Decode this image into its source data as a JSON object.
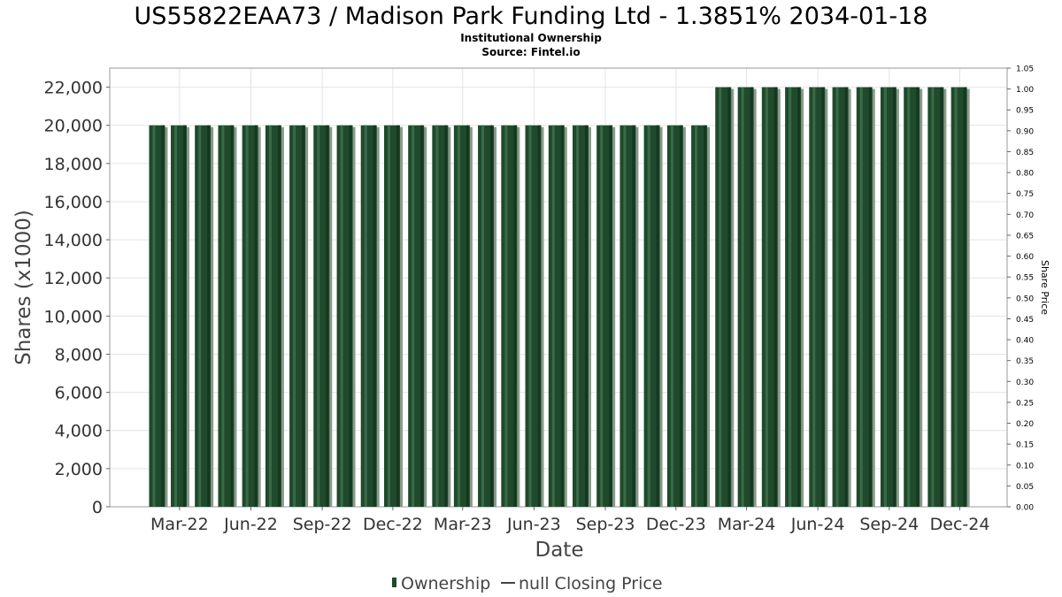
{
  "chart_data": {
    "type": "bar",
    "title": "US55822EAA73 / Madison Park Funding Ltd - 1.3851% 2034-01-18",
    "subtitle_lines": [
      "Institutional Ownership",
      "Source: Fintel.io"
    ],
    "xlabel": "Date",
    "ylabel": "Shares (x1000)",
    "ylabel_right": "Share Price",
    "ylim": [
      0,
      23000
    ],
    "ylim_right": [
      0,
      1.05
    ],
    "y_ticks": [
      0,
      2000,
      4000,
      6000,
      8000,
      10000,
      12000,
      14000,
      16000,
      18000,
      20000,
      22000
    ],
    "y_tick_labels": [
      "0",
      "2,000",
      "4,000",
      "6,000",
      "8,000",
      "10,000",
      "12,000",
      "14,000",
      "16,000",
      "18,000",
      "20,000",
      "22,000"
    ],
    "y_right_tick_labels": [
      "0.00",
      "0.05",
      "0.10",
      "0.15",
      "0.20",
      "0.25",
      "0.30",
      "0.35",
      "0.40",
      "0.45",
      "0.50",
      "0.55",
      "0.60",
      "0.65",
      "0.70",
      "0.75",
      "0.80",
      "0.85",
      "0.90",
      "0.95",
      "1.00",
      "1.05"
    ],
    "x_tick_labels": [
      "Mar-22",
      "Jun-22",
      "Sep-22",
      "Dec-22",
      "Mar-23",
      "Jun-23",
      "Sep-23",
      "Dec-23",
      "Mar-24",
      "Jun-24",
      "Sep-24",
      "Dec-24"
    ],
    "x_range": [
      "2021-12-01",
      "2025-01-31"
    ],
    "x_tick_dates": [
      "2022-03-01",
      "2022-06-01",
      "2022-09-01",
      "2022-12-01",
      "2023-03-01",
      "2023-06-01",
      "2023-09-01",
      "2023-12-01",
      "2024-03-01",
      "2024-06-01",
      "2024-09-01",
      "2024-12-01"
    ],
    "grid": true,
    "legend_position": "bottom",
    "series": [
      {
        "name": "Ownership",
        "color": "#1f4a2c",
        "dates": [
          "2022-01-31",
          "2022-02-28",
          "2022-03-31",
          "2022-04-30",
          "2022-05-31",
          "2022-06-30",
          "2022-07-31",
          "2022-08-31",
          "2022-09-30",
          "2022-10-31",
          "2022-11-30",
          "2022-12-31",
          "2023-01-31",
          "2023-02-28",
          "2023-03-31",
          "2023-04-30",
          "2023-05-31",
          "2023-06-30",
          "2023-07-31",
          "2023-08-31",
          "2023-09-30",
          "2023-10-31",
          "2023-11-30",
          "2023-12-31",
          "2024-01-31",
          "2024-02-29",
          "2024-03-31",
          "2024-04-30",
          "2024-05-31",
          "2024-06-30",
          "2024-07-31",
          "2024-08-31",
          "2024-09-30",
          "2024-10-31",
          "2024-11-30"
        ],
        "values": [
          20000,
          20000,
          20000,
          20000,
          20000,
          20000,
          20000,
          20000,
          20000,
          20000,
          20000,
          20000,
          20000,
          20000,
          20000,
          20000,
          20000,
          20000,
          20000,
          20000,
          20000,
          20000,
          20000,
          20000,
          22000,
          22000,
          22000,
          22000,
          22000,
          22000,
          22000,
          22000,
          22000,
          22000,
          22000
        ]
      },
      {
        "name": "null Closing Price",
        "color": "#444444",
        "values": []
      }
    ]
  }
}
